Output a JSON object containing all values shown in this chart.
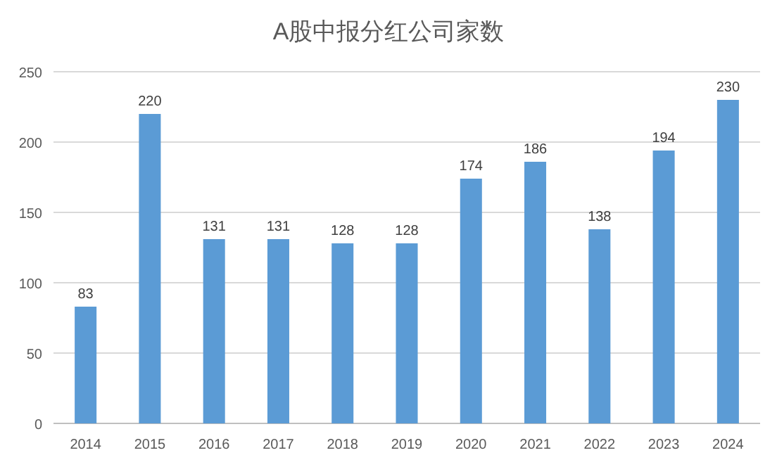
{
  "chart_data": {
    "type": "bar",
    "title": "A股中报分红公司家数",
    "categories": [
      "2014",
      "2015",
      "2016",
      "2017",
      "2018",
      "2019",
      "2020",
      "2021",
      "2022",
      "2023",
      "2024"
    ],
    "values": [
      83,
      220,
      131,
      131,
      128,
      128,
      174,
      186,
      138,
      194,
      230
    ],
    "color": "#5b9bd5",
    "ylim": [
      0,
      250
    ],
    "yticks": [
      0,
      50,
      100,
      150,
      200,
      250
    ],
    "grid": "y",
    "data_labels": true
  }
}
